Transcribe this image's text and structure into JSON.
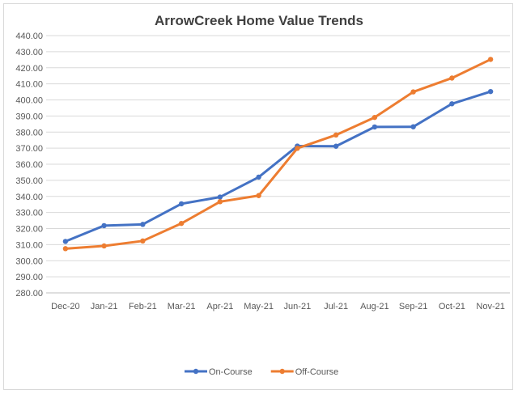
{
  "chart_data": {
    "type": "line",
    "title": "ArrowCreek Home Value Trends",
    "xlabel": "",
    "ylabel": "",
    "categories": [
      "Dec-20",
      "Jan-21",
      "Feb-21",
      "Mar-21",
      "Apr-21",
      "May-21",
      "Jun-21",
      "Jul-21",
      "Aug-21",
      "Sep-21",
      "Oct-21",
      "Nov-21"
    ],
    "ylim": [
      280,
      440
    ],
    "yticks": [
      "280.00",
      "290.00",
      "300.00",
      "310.00",
      "320.00",
      "330.00",
      "340.00",
      "350.00",
      "360.00",
      "370.00",
      "380.00",
      "390.00",
      "400.00",
      "410.00",
      "420.00",
      "430.00",
      "440.00"
    ],
    "grid": true,
    "legend_position": "bottom",
    "series": [
      {
        "name": "On-Course",
        "color": "#4472c4",
        "values": [
          312.0,
          321.8,
          322.6,
          335.4,
          339.6,
          352.0,
          371.3,
          371.2,
          383.2,
          383.3,
          397.6,
          405.2
        ]
      },
      {
        "name": "Off-Course",
        "color": "#ed7d31",
        "values": [
          307.5,
          309.2,
          312.3,
          323.2,
          336.7,
          340.5,
          369.9,
          378.2,
          389.1,
          405.0,
          413.6,
          425.2
        ]
      }
    ]
  }
}
